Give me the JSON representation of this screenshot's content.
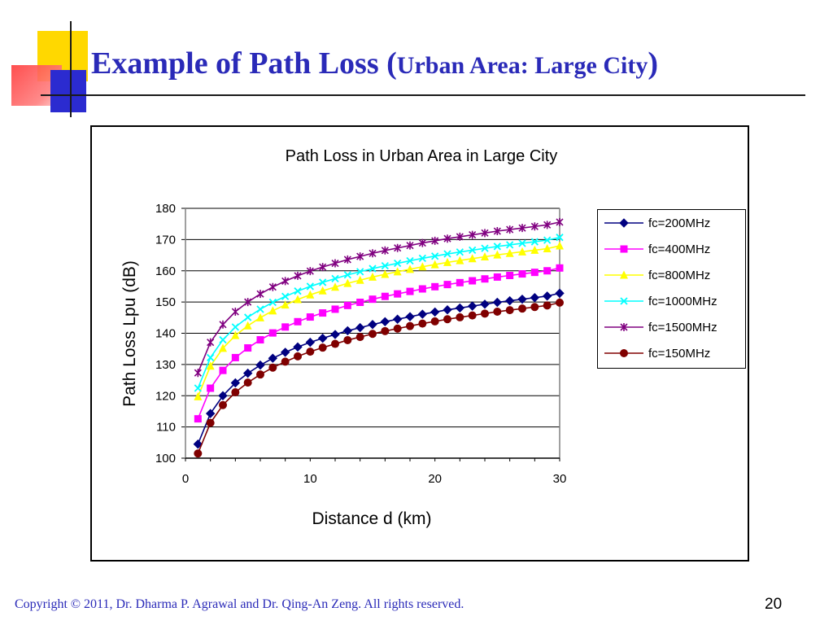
{
  "slide": {
    "title_main": "Example of Path Loss ",
    "title_paren_open": "(",
    "title_sub": "Urban Area: Large City",
    "title_paren_close": ")",
    "footer": "Copyright © 2011, Dr. Dharma P. Agrawal and Dr. Qing-An Zeng. All rights reserved.",
    "page_number": "20",
    "colors": {
      "title": "#2a2ab8",
      "deco_yellow": "#ffd800",
      "deco_red": "#ff4a4a",
      "deco_blue": "#2b2bd0"
    }
  },
  "chart_data": {
    "type": "line",
    "title": "Path Loss in Urban Area in Large City",
    "xlabel": "Distance d (km)",
    "ylabel": "Path Loss Lpu (dB)",
    "xlim": [
      0,
      30
    ],
    "ylim": [
      100,
      180
    ],
    "xticks": [
      0,
      10,
      20,
      30
    ],
    "yticks": [
      100,
      110,
      120,
      130,
      140,
      150,
      160,
      170,
      180
    ],
    "grid": "horizontal",
    "legend_position": "right",
    "x": [
      1,
      2,
      3,
      4,
      5,
      6,
      7,
      8,
      9,
      10,
      11,
      12,
      13,
      14,
      15,
      16,
      17,
      18,
      19,
      20,
      21,
      22,
      23,
      24,
      25,
      26,
      27,
      28,
      29,
      30
    ],
    "series": [
      {
        "name": "fc=200MHz",
        "color": "#000080",
        "marker": "diamond",
        "values": [
          104.5,
          114.3,
          120.0,
          124.1,
          127.2,
          129.8,
          132.0,
          133.9,
          135.6,
          137.1,
          138.4,
          139.6,
          140.8,
          141.8,
          142.8,
          143.7,
          144.5,
          145.3,
          146.1,
          146.8,
          147.5,
          148.1,
          148.7,
          149.3,
          149.9,
          150.4,
          150.9,
          151.4,
          151.9,
          152.8
        ]
      },
      {
        "name": "fc=400MHz",
        "color": "#ff00ff",
        "marker": "square",
        "values": [
          112.6,
          122.4,
          128.1,
          132.2,
          135.3,
          137.9,
          140.1,
          142.0,
          143.7,
          145.2,
          146.5,
          147.7,
          148.9,
          149.9,
          150.9,
          151.8,
          152.6,
          153.4,
          154.2,
          154.9,
          155.6,
          156.2,
          156.8,
          157.4,
          158.0,
          158.5,
          159.0,
          159.5,
          160.0,
          160.9
        ]
      },
      {
        "name": "fc=800MHz",
        "color": "#ffff00",
        "marker": "triangle",
        "values": [
          119.7,
          129.5,
          135.2,
          139.3,
          142.4,
          145.0,
          147.2,
          149.1,
          150.8,
          152.3,
          153.6,
          154.8,
          156.0,
          157.0,
          158.0,
          158.9,
          159.7,
          160.5,
          161.3,
          162.0,
          162.7,
          163.3,
          163.9,
          164.5,
          165.1,
          165.6,
          166.1,
          166.6,
          167.1,
          168.0
        ]
      },
      {
        "name": "fc=1000MHz",
        "color": "#00ffff",
        "marker": "x",
        "values": [
          122.4,
          132.2,
          137.9,
          142.0,
          145.1,
          147.7,
          149.9,
          151.8,
          153.5,
          155.0,
          156.3,
          157.5,
          158.7,
          159.7,
          160.7,
          161.6,
          162.4,
          163.2,
          164.0,
          164.7,
          165.4,
          166.0,
          166.6,
          167.2,
          167.8,
          168.3,
          168.8,
          169.3,
          169.8,
          170.7
        ]
      },
      {
        "name": "fc=1500MHz",
        "color": "#800080",
        "marker": "star",
        "values": [
          127.3,
          137.1,
          142.8,
          146.9,
          150.0,
          152.6,
          154.8,
          156.7,
          158.4,
          159.9,
          161.2,
          162.4,
          163.6,
          164.6,
          165.6,
          166.5,
          167.3,
          168.1,
          168.9,
          169.6,
          170.3,
          170.9,
          171.5,
          172.1,
          172.7,
          173.2,
          173.7,
          174.2,
          174.7,
          175.6
        ]
      },
      {
        "name": "fc=150MHz",
        "color": "#800000",
        "marker": "circle",
        "values": [
          101.5,
          111.3,
          117.0,
          121.1,
          124.2,
          126.8,
          129.0,
          130.9,
          132.6,
          134.1,
          135.4,
          136.6,
          137.8,
          138.8,
          139.8,
          140.7,
          141.5,
          142.3,
          143.1,
          143.8,
          144.5,
          145.1,
          145.7,
          146.3,
          146.9,
          147.4,
          147.9,
          148.4,
          148.9,
          149.8
        ]
      }
    ]
  }
}
